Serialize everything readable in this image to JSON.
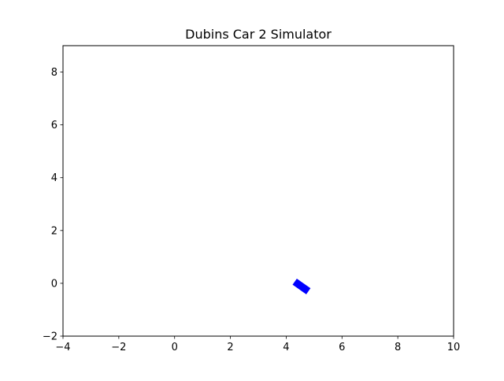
{
  "figure": {
    "title": "Dubins Car 2 Simulator",
    "background": "#ffffff",
    "axes_color": "#000000"
  },
  "plot": {
    "xlim": [
      -4,
      10
    ],
    "ylim": [
      -2,
      9
    ],
    "x_ticks": [
      -4,
      -2,
      0,
      2,
      4,
      6,
      8,
      10
    ],
    "x_tick_labels": [
      "−4",
      "−2",
      "0",
      "2",
      "4",
      "6",
      "8",
      "10"
    ],
    "y_ticks": [
      -2,
      0,
      2,
      4,
      6,
      8
    ],
    "y_tick_labels": [
      "−2",
      "0",
      "2",
      "4",
      "6",
      "8"
    ],
    "grid": false
  },
  "car": {
    "x": 4.55,
    "y": -0.12,
    "heading_deg": -35,
    "length": 0.6,
    "width": 0.28,
    "color": "#0000ff"
  }
}
